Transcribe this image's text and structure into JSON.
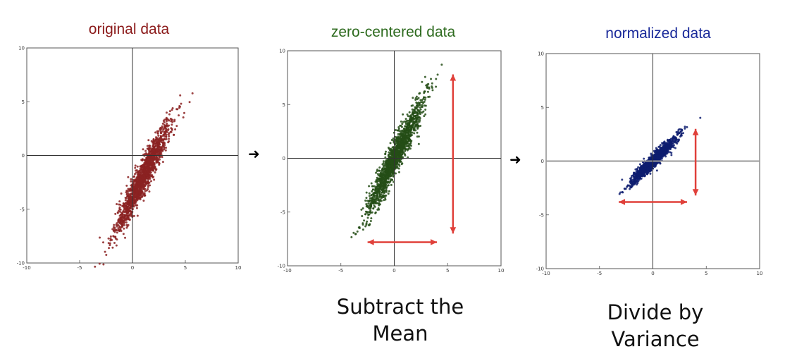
{
  "chart_data": [
    {
      "type": "scatter",
      "title": "original data",
      "title_color": "#8b1a1a",
      "point_color": "#8b2222",
      "xlim": [
        -10,
        10
      ],
      "ylim": [
        -10,
        10
      ],
      "xticks": [
        "-10",
        "-5",
        "0",
        "5",
        "10"
      ],
      "yticks": [
        "10",
        "5",
        "0",
        "-5",
        "-10"
      ],
      "center": [
        1,
        -2
      ],
      "scatter_std": [
        1.3,
        2.6
      ],
      "correlation": 0.95,
      "n_points": 1500,
      "arrows": []
    },
    {
      "type": "scatter",
      "title": "zero-centered data",
      "title_color": "#2e6b1f",
      "point_color": "#244d16",
      "xlim": [
        -10,
        10
      ],
      "ylim": [
        -10,
        10
      ],
      "xticks": [
        "-10",
        "-5",
        "0",
        "5",
        "10"
      ],
      "yticks": [
        "10",
        "5",
        "0",
        "-5",
        "-10"
      ],
      "center": [
        0,
        0
      ],
      "scatter_std": [
        1.3,
        2.6
      ],
      "correlation": 0.95,
      "n_points": 1500,
      "arrows": [
        {
          "from": [
            5.5,
            7.8
          ],
          "to": [
            5.5,
            -7.0
          ],
          "color": "#e0403a"
        },
        {
          "from": [
            -2.5,
            -7.8
          ],
          "to": [
            4.0,
            -7.8
          ],
          "color": "#e0403a"
        }
      ]
    },
    {
      "type": "scatter",
      "title": "normalized data",
      "title_color": "#1a2a9a",
      "point_color": "#0e1d70",
      "xlim": [
        -10,
        10
      ],
      "ylim": [
        -10,
        10
      ],
      "xticks": [
        "-10",
        "-5",
        "0",
        "5",
        "10"
      ],
      "yticks": [
        "10",
        "5",
        "0",
        "-5",
        "-10"
      ],
      "center": [
        0,
        0
      ],
      "scatter_std": [
        1.0,
        1.0
      ],
      "correlation": 0.95,
      "n_points": 1500,
      "arrows": [
        {
          "from": [
            4.0,
            3.0
          ],
          "to": [
            4.0,
            -3.2
          ],
          "color": "#e0403a"
        },
        {
          "from": [
            -3.2,
            -3.8
          ],
          "to": [
            3.2,
            -3.8
          ],
          "color": "#e0403a"
        }
      ]
    }
  ],
  "transitions": [
    "➜",
    "➜"
  ],
  "captions": {
    "subtract": "Subtract the\nMean",
    "divide": "Divide by Variance"
  }
}
